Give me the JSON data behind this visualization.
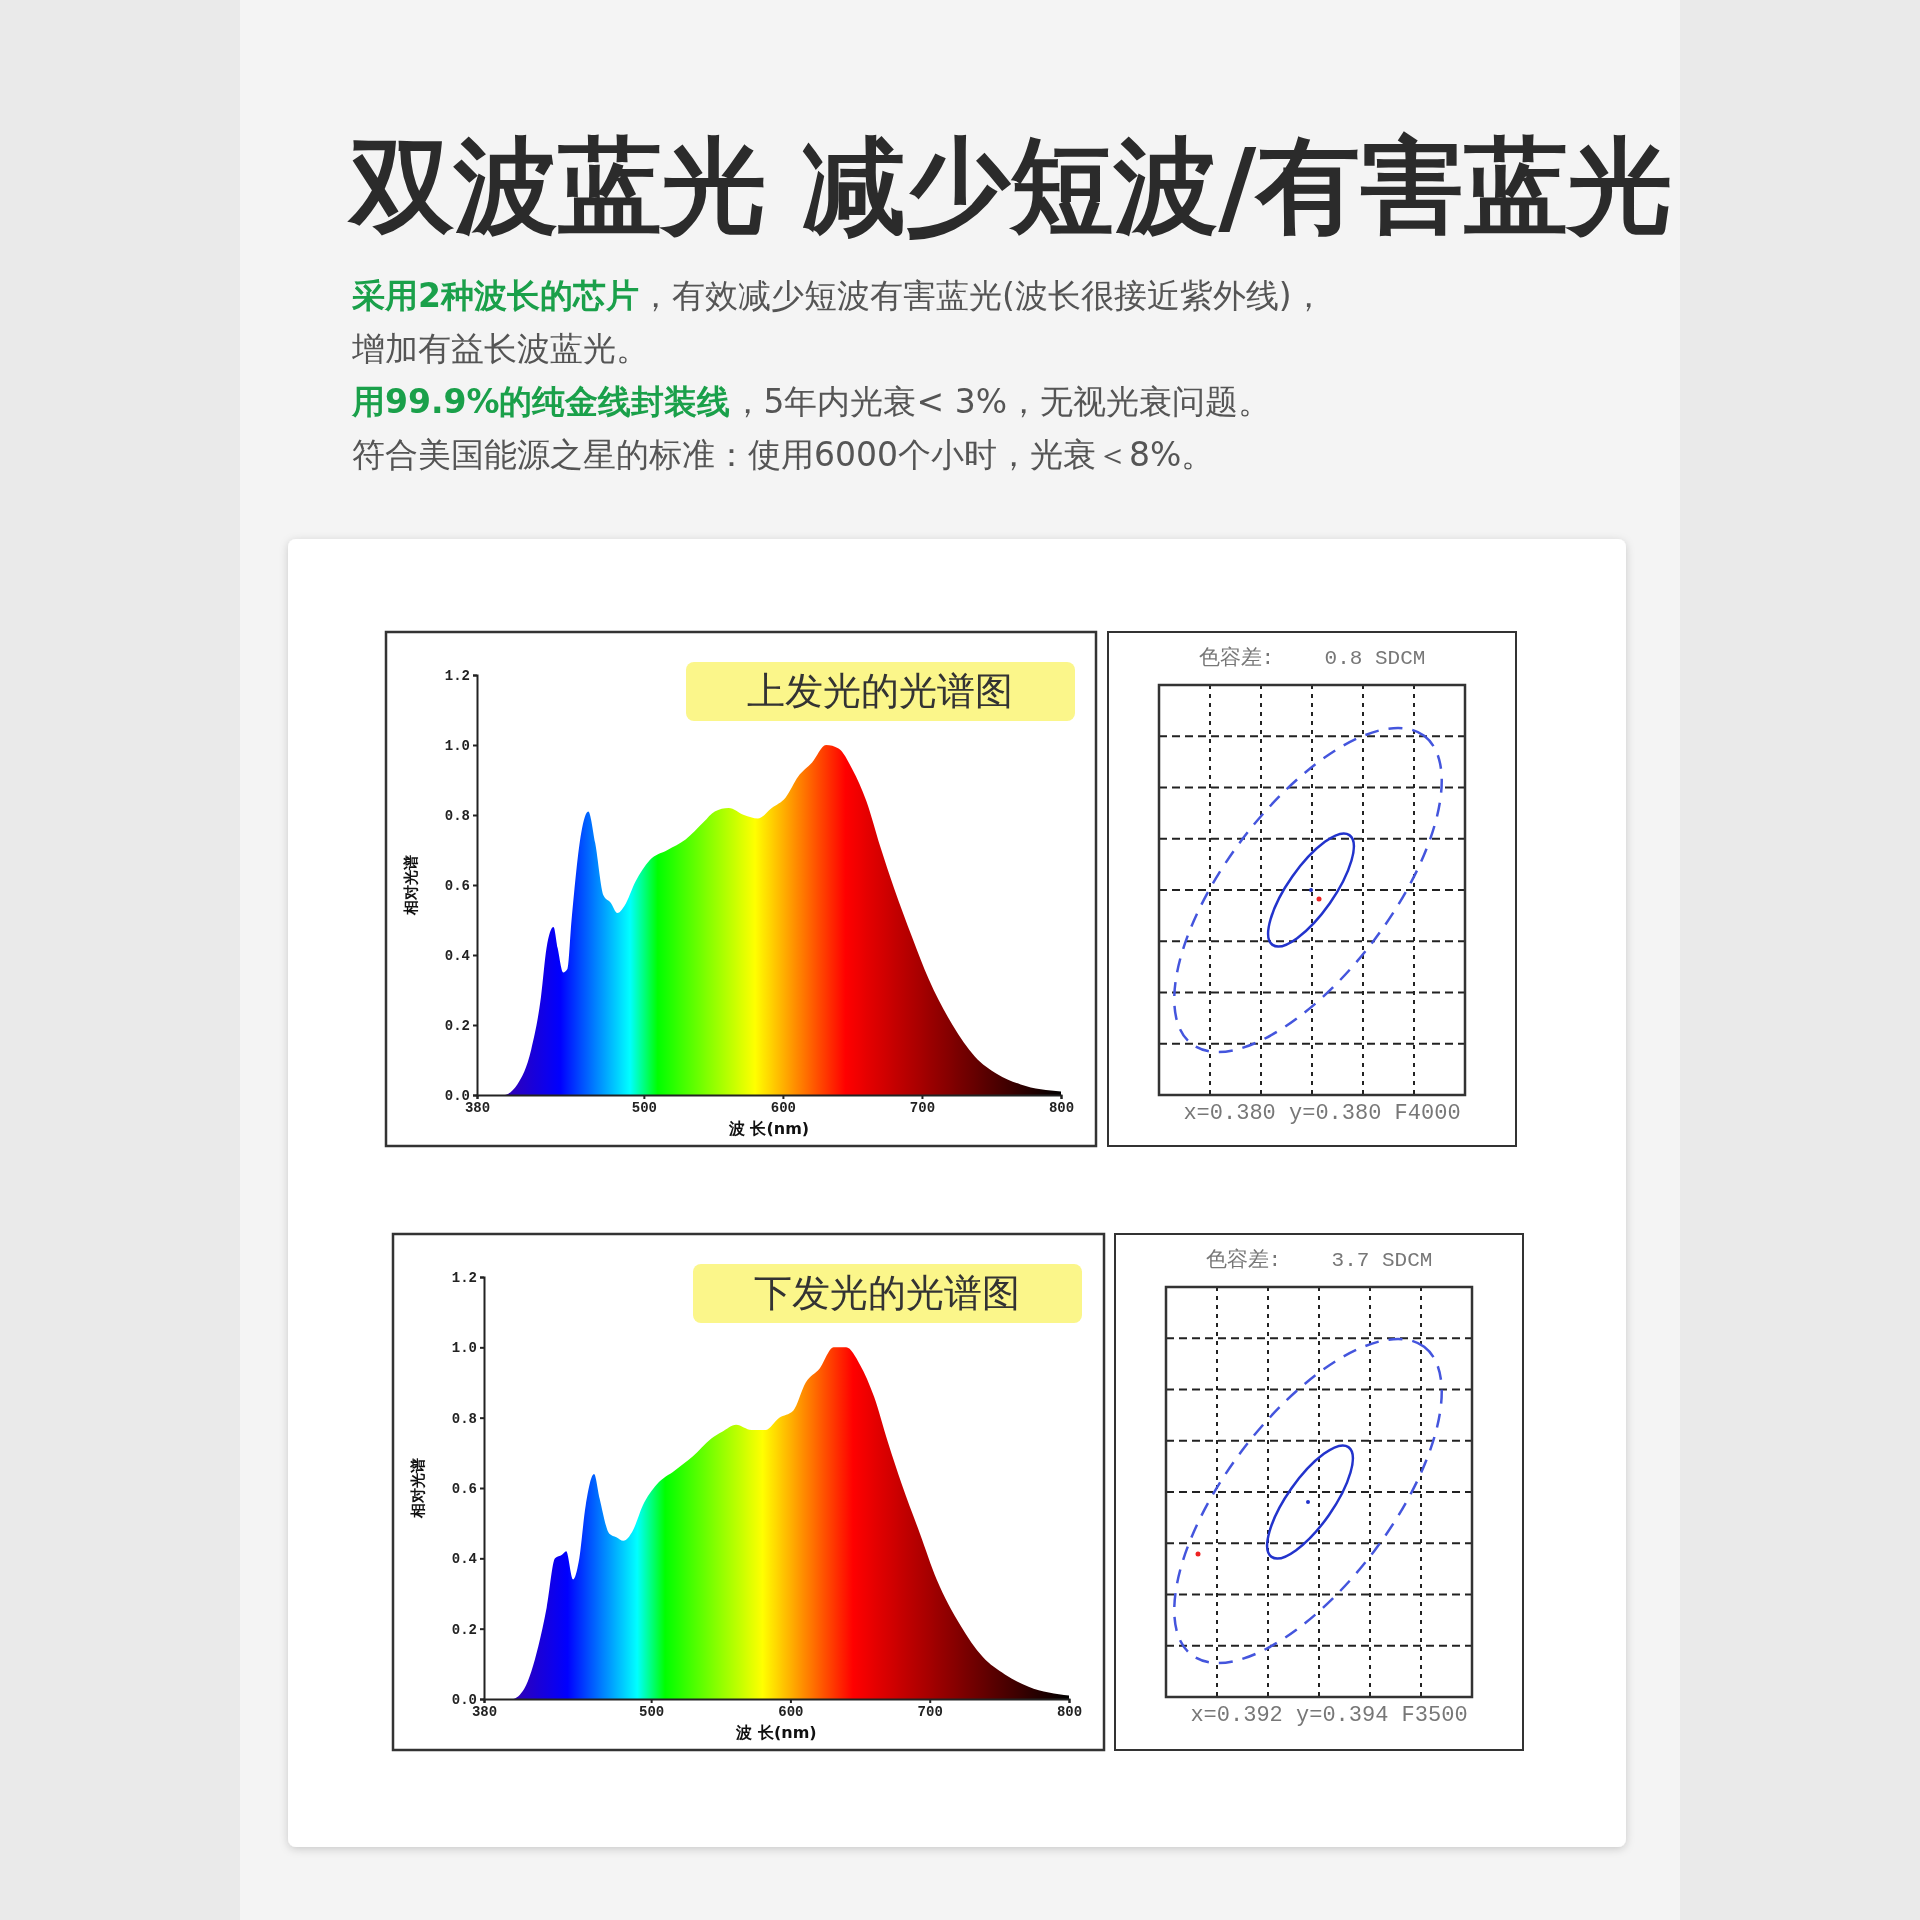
{
  "chart_data": [
    {
      "type": "other",
      "title": "双波蓝光 减少短波/有害蓝光",
      "annotations": [
        "采用2种波长的芯片",
        "，有效减少短波有害蓝光(波长很接近紫外线)，",
        "增加有益长波蓝光。",
        "用99.9%的纯金线封装线",
        "，5年内光衰< 3%，无视光衰问题。",
        "符合美国能源之星的标准：使用6000个小时，光衰＜8%。"
      ]
    },
    {
      "type": "area",
      "title": "上发光的光谱图",
      "xlabel": "波 长(nm)",
      "ylabel": "相对光谱",
      "xlim": [
        380,
        800
      ],
      "xticks": [
        380,
        500,
        600,
        700,
        800
      ],
      "ylim": [
        0,
        1.2
      ],
      "yticks": [
        {
          "value": 0,
          "label": "0.0"
        },
        {
          "value": 0.2,
          "label": "0.2"
        },
        {
          "value": 0.4,
          "label": "0.4"
        },
        {
          "value": 0.6,
          "label": "0.6"
        },
        {
          "value": 0.8,
          "label": "0.8"
        },
        {
          "value": 1,
          "label": "1.0"
        },
        {
          "value": 1.2,
          "label": "1.2"
        }
      ],
      "x": [
        380,
        399,
        409,
        419,
        426,
        430,
        435,
        438,
        442,
        445,
        448,
        455,
        460,
        465,
        471,
        476,
        481,
        486,
        494,
        504,
        517,
        530,
        543,
        551,
        561,
        572,
        582,
        592,
        602,
        611,
        621,
        631,
        640,
        650,
        660,
        670,
        680,
        693,
        705,
        722,
        738,
        754,
        771,
        800
      ],
      "values": [
        0,
        0,
        0.03,
        0.13,
        0.28,
        0.42,
        0.48,
        0.42,
        0.35,
        0.36,
        0.5,
        0.75,
        0.81,
        0.72,
        0.57,
        0.55,
        0.52,
        0.54,
        0.61,
        0.67,
        0.7,
        0.73,
        0.78,
        0.81,
        0.82,
        0.8,
        0.79,
        0.82,
        0.85,
        0.91,
        0.95,
        1,
        0.99,
        0.93,
        0.84,
        0.71,
        0.59,
        0.45,
        0.33,
        0.2,
        0.11,
        0.06,
        0.03,
        0.01
      ]
    },
    {
      "type": "other",
      "title": "色容差:    0.8 SDCM",
      "annotations": [
        "x=0.380 y=0.380 F4000"
      ]
    },
    {
      "type": "area",
      "title": "下发光的光谱图",
      "xlabel": "波 长(nm)",
      "ylabel": "相对光谱",
      "xlim": [
        380,
        800
      ],
      "xticks": [
        380,
        500,
        600,
        700,
        800
      ],
      "ylim": [
        0,
        1.2
      ],
      "yticks": [
        {
          "value": 0,
          "label": "0.0"
        },
        {
          "value": 0.2,
          "label": "0.2"
        },
        {
          "value": 0.4,
          "label": "0.4"
        },
        {
          "value": 0.6,
          "label": "0.6"
        },
        {
          "value": 0.8,
          "label": "0.8"
        },
        {
          "value": 1,
          "label": "1.0"
        },
        {
          "value": 1.2,
          "label": "1.2"
        }
      ],
      "x": [
        380,
        400,
        409,
        419,
        425,
        431,
        436,
        439,
        444,
        448,
        453,
        459,
        463,
        470,
        475,
        480,
        487,
        494,
        504,
        517,
        530,
        543,
        551,
        561,
        572,
        582,
        592,
        602,
        611,
        621,
        631,
        640,
        650,
        660,
        670,
        680,
        693,
        705,
        722,
        738,
        754,
        771,
        800
      ],
      "values": [
        0,
        0,
        0.03,
        0.15,
        0.26,
        0.4,
        0.41,
        0.42,
        0.34,
        0.39,
        0.55,
        0.64,
        0.57,
        0.47,
        0.46,
        0.45,
        0.48,
        0.55,
        0.61,
        0.65,
        0.69,
        0.74,
        0.76,
        0.78,
        0.765,
        0.765,
        0.8,
        0.82,
        0.9,
        0.94,
        1,
        1,
        0.95,
        0.86,
        0.73,
        0.61,
        0.47,
        0.34,
        0.21,
        0.12,
        0.07,
        0.035,
        0.01
      ]
    },
    {
      "type": "other",
      "title": "色容差:    3.7 SDCM",
      "annotations": [
        "x=0.392 y=0.394 F3500"
      ]
    }
  ]
}
